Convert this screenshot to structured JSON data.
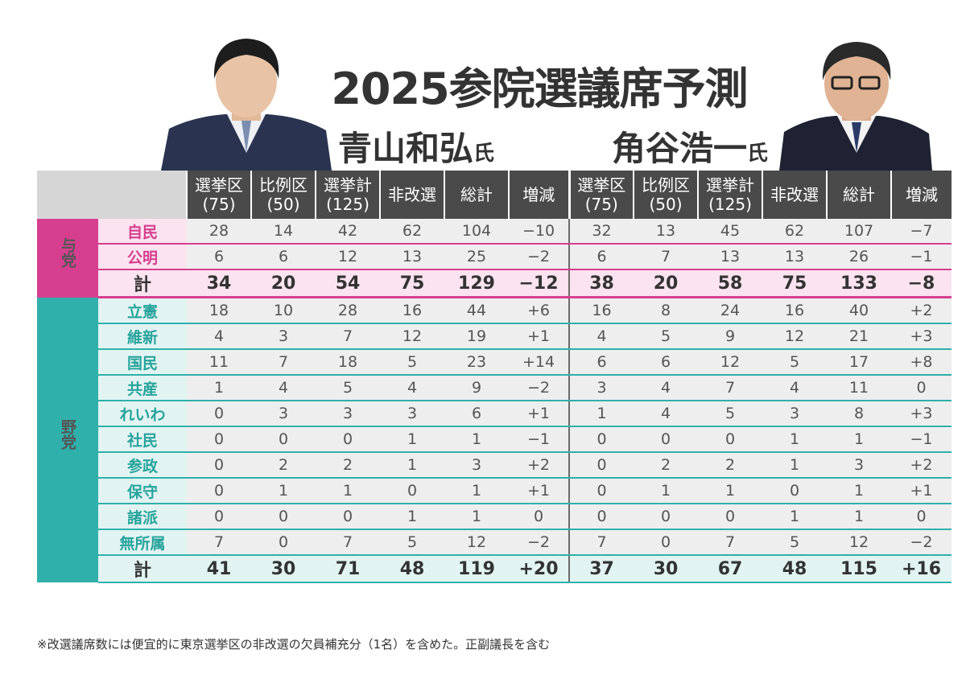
{
  "title": "2025参院選議席予測",
  "forecasters": [
    {
      "name": "青山和弘",
      "honorific": "氏"
    },
    {
      "name": "角谷浩一",
      "honorific": "氏"
    }
  ],
  "columns": [
    {
      "line1": "選挙区",
      "line2": "(75)"
    },
    {
      "line1": "比例区",
      "line2": "(50)"
    },
    {
      "line1": "選挙計",
      "line2": "(125)"
    },
    {
      "line1": "非改選",
      "line2": ""
    },
    {
      "line1": "総計",
      "line2": ""
    },
    {
      "line1": "増減",
      "line2": ""
    }
  ],
  "groups": [
    {
      "label": "与党",
      "rows": [
        {
          "party": "自民",
          "aoyama": [
            "28",
            "14",
            "42",
            "62",
            "104",
            "−10"
          ],
          "sumiya": [
            "32",
            "13",
            "45",
            "62",
            "107",
            "−7"
          ]
        },
        {
          "party": "公明",
          "aoyama": [
            "6",
            "6",
            "12",
            "13",
            "25",
            "−2"
          ],
          "sumiya": [
            "6",
            "7",
            "13",
            "13",
            "26",
            "−1"
          ]
        }
      ],
      "total": {
        "party": "計",
        "aoyama": [
          "34",
          "20",
          "54",
          "75",
          "129",
          "−12"
        ],
        "sumiya": [
          "38",
          "20",
          "58",
          "75",
          "133",
          "−8"
        ]
      }
    },
    {
      "label": "野党",
      "rows": [
        {
          "party": "立憲",
          "aoyama": [
            "18",
            "10",
            "28",
            "16",
            "44",
            "+6"
          ],
          "sumiya": [
            "16",
            "8",
            "24",
            "16",
            "40",
            "+2"
          ]
        },
        {
          "party": "維新",
          "aoyama": [
            "4",
            "3",
            "7",
            "12",
            "19",
            "+1"
          ],
          "sumiya": [
            "4",
            "5",
            "9",
            "12",
            "21",
            "+3"
          ]
        },
        {
          "party": "国民",
          "aoyama": [
            "11",
            "7",
            "18",
            "5",
            "23",
            "+14"
          ],
          "sumiya": [
            "6",
            "6",
            "12",
            "5",
            "17",
            "+8"
          ]
        },
        {
          "party": "共産",
          "aoyama": [
            "1",
            "4",
            "5",
            "4",
            "9",
            "−2"
          ],
          "sumiya": [
            "3",
            "4",
            "7",
            "4",
            "11",
            "0"
          ]
        },
        {
          "party": "れいわ",
          "aoyama": [
            "0",
            "3",
            "3",
            "3",
            "6",
            "+1"
          ],
          "sumiya": [
            "1",
            "4",
            "5",
            "3",
            "8",
            "+3"
          ]
        },
        {
          "party": "社民",
          "aoyama": [
            "0",
            "0",
            "0",
            "1",
            "1",
            "−1"
          ],
          "sumiya": [
            "0",
            "0",
            "0",
            "1",
            "1",
            "−1"
          ]
        },
        {
          "party": "参政",
          "aoyama": [
            "0",
            "2",
            "2",
            "1",
            "3",
            "+2"
          ],
          "sumiya": [
            "0",
            "2",
            "2",
            "1",
            "3",
            "+2"
          ]
        },
        {
          "party": "保守",
          "aoyama": [
            "0",
            "1",
            "1",
            "0",
            "1",
            "+1"
          ],
          "sumiya": [
            "0",
            "1",
            "1",
            "0",
            "1",
            "+1"
          ]
        },
        {
          "party": "諸派",
          "aoyama": [
            "0",
            "0",
            "0",
            "1",
            "1",
            "0"
          ],
          "sumiya": [
            "0",
            "0",
            "0",
            "1",
            "1",
            "0"
          ]
        },
        {
          "party": "無所属",
          "aoyama": [
            "7",
            "0",
            "7",
            "5",
            "12",
            "−2"
          ],
          "sumiya": [
            "7",
            "0",
            "7",
            "5",
            "12",
            "−2"
          ]
        }
      ],
      "total": {
        "party": "計",
        "aoyama": [
          "41",
          "30",
          "71",
          "48",
          "119",
          "+20"
        ],
        "sumiya": [
          "37",
          "30",
          "67",
          "48",
          "115",
          "+16"
        ]
      }
    }
  ],
  "footnote": "※改選議席数には便宜的に東京選挙区の非改選の欠員補充分（1名）を含めた。正副議長を含む",
  "colors": {
    "ruling": "#d63f8f",
    "opposition": "#2fb0aa",
    "header": "#4a4a4a"
  }
}
